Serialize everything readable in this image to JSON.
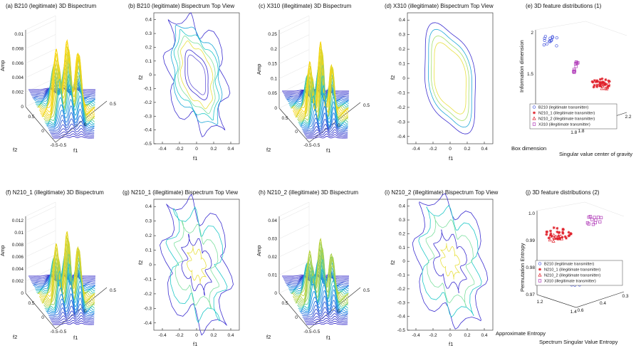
{
  "colors": {
    "lo": "#3c2fd0",
    "mid": "#20c8c8",
    "hi": "#ffd400",
    "red": "#e0202a",
    "blue": "#4455dd",
    "purple": "#b03ab8"
  },
  "chart_data": [
    {
      "id": "a",
      "type": "surface3d",
      "title": "(a) B210 (legitimate) 3D Bispectrum",
      "zlabel": "Amp",
      "xlabel": "f1",
      "ylabel": "f2",
      "z_ticks": [
        "0",
        "0.002",
        "0.004",
        "0.006",
        "0.008",
        "0.01"
      ],
      "x_ticks": [
        "-0.5",
        "0",
        "0.5"
      ],
      "y_ticks": [
        "0.5",
        "0",
        "-0.5"
      ],
      "zmax": 0.0105,
      "peaks": [
        0.0092,
        0.0108,
        0.0092
      ],
      "spread": 0.62
    },
    {
      "id": "b",
      "type": "contour",
      "title": "(b) B210 (legitimate) Bispectrum Top View",
      "xlabel": "f1",
      "ylabel": "f2",
      "x_ticks": [
        "-0.4",
        "-0.2",
        "0",
        "0.2",
        "0.4"
      ],
      "y_ticks": [
        "0.4",
        "0.3",
        "0.2",
        "0.1",
        "0",
        "-0.1",
        "-0.2",
        "-0.3",
        "-0.4",
        "-0.5"
      ],
      "xlim": [
        -0.5,
        0.5
      ],
      "ylim": [
        -0.5,
        0.45
      ],
      "levels": [
        {
          "a": 0.46,
          "b": 0.3,
          "color": "#3c2fd0",
          "wobble": 0.05
        },
        {
          "a": 0.4,
          "b": 0.25,
          "color": "#20a8d8",
          "wobble": 0.02
        },
        {
          "a": 0.35,
          "b": 0.22,
          "color": "#20c8c8",
          "wobble": 0.02
        },
        {
          "a": 0.3,
          "b": 0.19,
          "color": "#7ee0a0",
          "wobble": 0.01
        },
        {
          "a": 0.26,
          "b": 0.16,
          "color": "#e8e040",
          "wobble": 0.01
        },
        {
          "a": 0.2,
          "b": 0.12,
          "color": "#3c2fd0",
          "wobble": 0.0
        },
        {
          "a": 0.16,
          "b": 0.09,
          "color": "#6a5cd8",
          "wobble": 0.0
        }
      ]
    },
    {
      "id": "c",
      "type": "surface3d",
      "title": "(c) X310 (illegitimate) 3D Bispectrum",
      "zlabel": "Amp",
      "xlabel": "f1",
      "ylabel": "f2",
      "z_ticks": [
        "0",
        "0.05",
        "0.1",
        "0.15",
        "0.2",
        "0.25"
      ],
      "x_ticks": [
        "-0.5",
        "0",
        "0.5"
      ],
      "y_ticks": [
        "0.5",
        "0",
        "-0.5"
      ],
      "zmax": 0.26,
      "peaks": [
        0.18,
        0.26,
        0.18
      ],
      "spread": 0.42
    },
    {
      "id": "d",
      "type": "contour",
      "title": "(d) X310 (illegitimate) Bispectrum Top View",
      "xlabel": "f1",
      "ylabel": "f2",
      "x_ticks": [
        "-0.4",
        "-0.2",
        "0",
        "0.2",
        "0.4"
      ],
      "y_ticks": [
        "0.4",
        "0.3",
        "0.2",
        "0.1",
        "0",
        "-0.1",
        "-0.2",
        "-0.3",
        "-0.4"
      ],
      "xlim": [
        -0.5,
        0.5
      ],
      "ylim": [
        -0.45,
        0.45
      ],
      "levels": [
        {
          "a": 0.42,
          "b": 0.27,
          "color": "#3c2fd0",
          "wobble": 0.0
        },
        {
          "a": 0.37,
          "b": 0.23,
          "color": "#20a8d8",
          "wobble": 0.0
        },
        {
          "a": 0.32,
          "b": 0.2,
          "color": "#a8e070",
          "wobble": 0.0
        },
        {
          "a": 0.27,
          "b": 0.17,
          "color": "#e8e040",
          "wobble": 0.0
        }
      ]
    },
    {
      "id": "e",
      "type": "scatter3d",
      "title": "(e) 3D feature distributions (1)",
      "xlabel": "Singular value center of gravity",
      "ylabel": "Box dimension",
      "zlabel": "Information dimension",
      "z_ticks": [
        "1",
        "1.5",
        "2"
      ],
      "x_ticks": [
        "1.8",
        "2",
        "2.2"
      ],
      "y_ticks": [
        "1.4",
        "1.6",
        "1.8"
      ],
      "legend": [
        {
          "label": "B210 (legitimate transmitter)",
          "marker": "o",
          "color": "#4455dd"
        },
        {
          "label": "N210_1 (illegitimate transmitter)",
          "marker": "*",
          "color": "#e0202a"
        },
        {
          "label": "N210_2 (illegitimate transmitter)",
          "marker": "^",
          "color": "#e0202a"
        },
        {
          "label": "X310 (illegitimate transmitter)",
          "marker": "s",
          "color": "#b03ab8"
        }
      ],
      "clusters": [
        {
          "label": "B210",
          "cx": 0.16,
          "cy": 0.13,
          "n": 14,
          "sx": 0.08,
          "sy": 0.06
        },
        {
          "label": "X310",
          "cx": 0.45,
          "cy": 0.42,
          "n": 10,
          "sx": 0.04,
          "sy": 0.08
        },
        {
          "label": "N210_1",
          "cx": 0.72,
          "cy": 0.62,
          "n": 28,
          "sx": 0.1,
          "sy": 0.05
        },
        {
          "label": "N210_2",
          "cx": 0.76,
          "cy": 0.66,
          "n": 12,
          "sx": 0.06,
          "sy": 0.04
        }
      ]
    },
    {
      "id": "f",
      "type": "surface3d",
      "title": "(f) N210_1 (illegitimate) 3D Bispectrum",
      "zlabel": "Amp",
      "xlabel": "f1",
      "ylabel": "f2",
      "z_ticks": [
        "0",
        "0.002",
        "0.004",
        "0.006",
        "0.008",
        "0.01",
        "0.012"
      ],
      "x_ticks": [
        "-0.5",
        "0",
        "0.5"
      ],
      "y_ticks": [
        "0.5",
        "0",
        "-0.5"
      ],
      "zmax": 0.0125,
      "peaks": [
        0.0095,
        0.012,
        0.0095
      ],
      "spread": 0.5
    },
    {
      "id": "g",
      "type": "contour",
      "title": "(g) N210_1 (illegitimate) Bispectrum Top View",
      "xlabel": "f1",
      "ylabel": "f2",
      "x_ticks": [
        "-0.4",
        "-0.2",
        "0",
        "0.2",
        "0.4"
      ],
      "y_ticks": [
        "0.4",
        "0.3",
        "0.2",
        "0.1",
        "0",
        "-0.1",
        "-0.2",
        "-0.3",
        "-0.4"
      ],
      "xlim": [
        -0.5,
        0.5
      ],
      "ylim": [
        -0.45,
        0.45
      ],
      "levels": [
        {
          "a": 0.48,
          "b": 0.33,
          "color": "#3c2fd0",
          "wobble": 0.06
        },
        {
          "a": 0.4,
          "b": 0.26,
          "color": "#20c8c8",
          "wobble": 0.06
        },
        {
          "a": 0.3,
          "b": 0.2,
          "color": "#7ee0a0",
          "wobble": 0.04
        },
        {
          "a": 0.2,
          "b": 0.13,
          "color": "#3c2fd0",
          "wobble": 0.03
        },
        {
          "a": 0.12,
          "b": 0.08,
          "color": "#e8e040",
          "wobble": 0.02
        }
      ]
    },
    {
      "id": "h",
      "type": "surface3d",
      "title": "(h) N210_2 (illegitimate) 3D Bispectrum",
      "zlabel": "Amp",
      "xlabel": "f1",
      "ylabel": "f2",
      "z_ticks": [
        "0",
        "0.01",
        "0.02",
        "0.03",
        "0.04"
      ],
      "x_ticks": [
        "-0.5",
        "0",
        "0.5"
      ],
      "y_ticks": [
        "0.5",
        "0",
        "-0.5"
      ],
      "zmax": 0.04,
      "peaks": [
        0.026,
        0.034,
        0.026
      ],
      "spread": 0.55
    },
    {
      "id": "i",
      "type": "contour",
      "title": "(i) N210_2 (illegitimate) Bispectrum Top View",
      "xlabel": "f1",
      "ylabel": "f2",
      "x_ticks": [
        "-0.4",
        "-0.2",
        "0",
        "0.2",
        "0.4"
      ],
      "y_ticks": [
        "0.4",
        "0.3",
        "0.2",
        "0.1",
        "0",
        "-0.1",
        "-0.2",
        "-0.3",
        "-0.4",
        "-0.5"
      ],
      "xlim": [
        -0.5,
        0.5
      ],
      "ylim": [
        -0.5,
        0.45
      ],
      "levels": [
        {
          "a": 0.5,
          "b": 0.36,
          "color": "#3c2fd0",
          "wobble": 0.05
        },
        {
          "a": 0.42,
          "b": 0.29,
          "color": "#20c8c8",
          "wobble": 0.05
        },
        {
          "a": 0.33,
          "b": 0.22,
          "color": "#7ee0a0",
          "wobble": 0.04
        },
        {
          "a": 0.22,
          "b": 0.15,
          "color": "#3c2fd0",
          "wobble": 0.03
        },
        {
          "a": 0.12,
          "b": 0.08,
          "color": "#e8e040",
          "wobble": 0.02
        }
      ]
    },
    {
      "id": "j",
      "type": "scatter3d",
      "title": "(j) 3D feature distributions (2)",
      "xlabel": "Approximate Entropy",
      "ylabel": "Spectrum Singular Value Entropy",
      "zlabel": "Permutation Entropy",
      "z_ticks": [
        "0.97",
        "0.98",
        "0.99",
        "1.0"
      ],
      "x_ticks": [
        "0.6",
        "0.4",
        "0.3"
      ],
      "y_ticks": [
        "1.2",
        "1.4"
      ],
      "legend": [
        {
          "label": "B210 (legitimate transmitter)",
          "marker": "o",
          "color": "#4455dd"
        },
        {
          "label": "N210_1 (illegitimate transmitter)",
          "marker": "*",
          "color": "#e0202a"
        },
        {
          "label": "N210_2 (illegitimate transmitter)",
          "marker": "^",
          "color": "#e0202a"
        },
        {
          "label": "X310 (illegitimate transmitter)",
          "marker": "s",
          "color": "#b03ab8"
        }
      ],
      "clusters": [
        {
          "label": "X310",
          "cx": 0.68,
          "cy": 0.12,
          "n": 12,
          "sx": 0.1,
          "sy": 0.05
        },
        {
          "label": "N210_1",
          "cx": 0.25,
          "cy": 0.27,
          "n": 30,
          "sx": 0.15,
          "sy": 0.07
        },
        {
          "label": "N210_2",
          "cx": 0.22,
          "cy": 0.33,
          "n": 10,
          "sx": 0.08,
          "sy": 0.04
        },
        {
          "label": "B210",
          "cx": 0.42,
          "cy": 0.84,
          "n": 16,
          "sx": 0.09,
          "sy": 0.05
        }
      ]
    }
  ]
}
